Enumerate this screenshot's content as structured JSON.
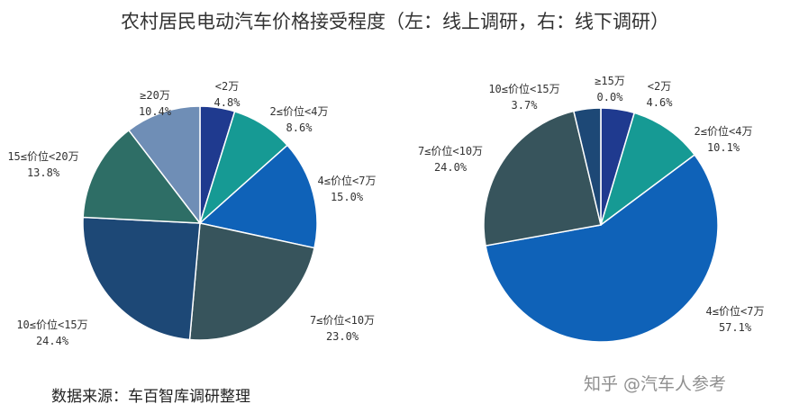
{
  "title": "农村居民电动汽车价格接受程度（左：线上调研，右：线下调研）",
  "source_note": "数据来源：车百智库调研整理",
  "watermark": "知乎 @汽车人参考",
  "chart_data": [
    {
      "type": "pie",
      "slices": [
        {
          "label": "<2万",
          "value": 4.8,
          "value_text": "4.8%",
          "color": "#1f3a8f"
        },
        {
          "label": "2≤价位<4万",
          "value": 8.6,
          "value_text": "8.6%",
          "color": "#169a94"
        },
        {
          "label": "4≤价位<7万",
          "value": 15.0,
          "value_text": "15.0%",
          "color": "#0f62b8"
        },
        {
          "label": "7≤价位<10万",
          "value": 23.0,
          "value_text": "23.0%",
          "color": "#37545c"
        },
        {
          "label": "10≤价位<15万",
          "value": 24.4,
          "value_text": "24.4%",
          "color": "#1d4876"
        },
        {
          "label": "15≤价位<20万",
          "value": 13.8,
          "value_text": "13.8%",
          "color": "#2e6e66"
        },
        {
          "label": "≥20万",
          "value": 10.4,
          "value_text": "10.4%",
          "color": "#6f8eb6"
        }
      ]
    },
    {
      "type": "pie",
      "slices": [
        {
          "label": "<2万",
          "value": 4.6,
          "value_text": "4.6%",
          "color": "#1f3a8f"
        },
        {
          "label": "2≤价位<4万",
          "value": 10.1,
          "value_text": "10.1%",
          "color": "#169a94"
        },
        {
          "label": "4≤价位<7万",
          "value": 57.1,
          "value_text": "57.1%",
          "color": "#0f62b8"
        },
        {
          "label": "7≤价位<10万",
          "value": 24.0,
          "value_text": "24.0%",
          "color": "#37545c"
        },
        {
          "label": "10≤价位<15万",
          "value": 3.7,
          "value_text": "3.7%",
          "color": "#1d4876"
        },
        {
          "label": "≥15万",
          "value": 0.0,
          "value_text": "0.0%",
          "color": "#6f8eb6"
        }
      ]
    }
  ]
}
